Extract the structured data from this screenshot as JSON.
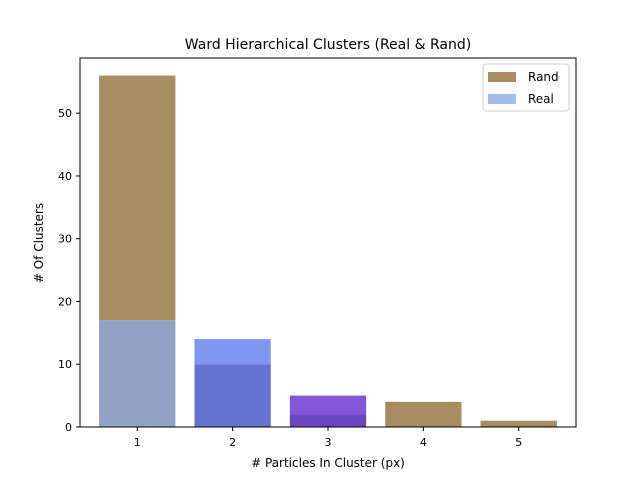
{
  "chart_data": {
    "type": "bar",
    "title": "Ward Hierarchical Clusters (Real & Rand)",
    "xlabel": "# Particles In Cluster (px)",
    "ylabel": "# Of Clusters",
    "categories": [
      "1",
      "2",
      "3",
      "4",
      "5"
    ],
    "ylim": [
      0,
      58.8
    ],
    "yticks": [
      "0",
      "10",
      "20",
      "30",
      "40",
      "50"
    ],
    "legend_position": "top-right",
    "grid": false,
    "overlay": true,
    "series": [
      {
        "name": "Rand",
        "values": [
          56,
          10,
          2,
          4,
          1
        ],
        "color": "#a88b5e",
        "legend_color": "#a88b5e"
      },
      {
        "name": "Real",
        "values": [
          17,
          14,
          5,
          0,
          0
        ],
        "colors": [
          "#90a3c6",
          "#7f96f3",
          "#8655da",
          "#8f5f9f",
          "#7a5d80"
        ],
        "legend_color": "#a0bcf0"
      }
    ],
    "overlap_colors": [
      "#90a3c6",
      "#6473d0",
      "#6c45c2",
      "#8f5f9f",
      "#7a5d80"
    ]
  }
}
